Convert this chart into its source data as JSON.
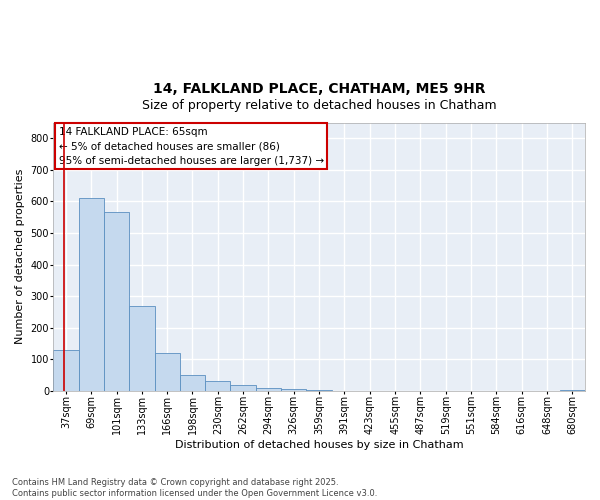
{
  "title_line1": "14, FALKLAND PLACE, CHATHAM, ME5 9HR",
  "title_line2": "Size of property relative to detached houses in Chatham",
  "xlabel": "Distribution of detached houses by size in Chatham",
  "ylabel": "Number of detached properties",
  "categories": [
    "37sqm",
    "69sqm",
    "101sqm",
    "133sqm",
    "166sqm",
    "198sqm",
    "230sqm",
    "262sqm",
    "294sqm",
    "326sqm",
    "359sqm",
    "391sqm",
    "423sqm",
    "455sqm",
    "487sqm",
    "519sqm",
    "551sqm",
    "584sqm",
    "616sqm",
    "648sqm",
    "680sqm"
  ],
  "values": [
    128,
    610,
    567,
    270,
    120,
    50,
    30,
    20,
    8,
    7,
    2,
    0,
    0,
    0,
    0,
    0,
    0,
    0,
    0,
    0,
    2
  ],
  "bar_color": "#c5d9ee",
  "bar_edge_color": "#5a8fc0",
  "background_color": "#e8eef6",
  "grid_color": "#ffffff",
  "annotation_box_color": "#cc0000",
  "annotation_text": "14 FALKLAND PLACE: 65sqm\n← 5% of detached houses are smaller (86)\n95% of semi-detached houses are larger (1,737) →",
  "vline_x": -0.08,
  "ylim": [
    0,
    850
  ],
  "yticks": [
    0,
    100,
    200,
    300,
    400,
    500,
    600,
    700,
    800
  ],
  "footnote": "Contains HM Land Registry data © Crown copyright and database right 2025.\nContains public sector information licensed under the Open Government Licence v3.0.",
  "title_fontsize": 10,
  "subtitle_fontsize": 9,
  "axis_label_fontsize": 8,
  "tick_fontsize": 7,
  "annotation_fontsize": 7.5
}
